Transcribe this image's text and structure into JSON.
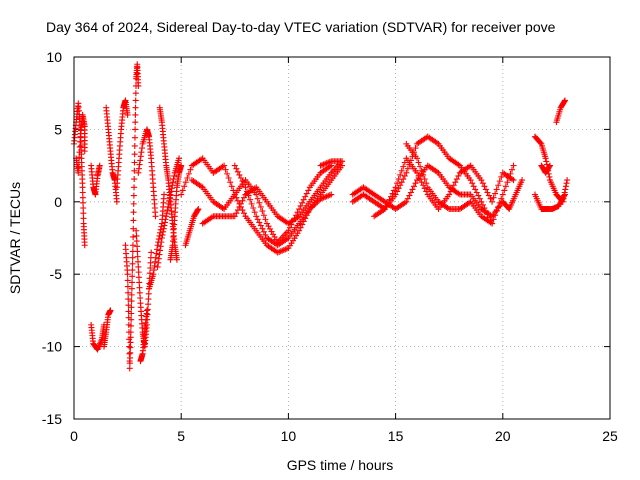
{
  "chart_data": {
    "type": "scatter",
    "title": "Day 364 of 2024, Sidereal Day-to-day VTEC variation (SDTVAR) for receiver pove",
    "xlabel": "GPS time / hours",
    "ylabel": "SDTVAR / TECUs",
    "xlim": [
      0,
      25
    ],
    "ylim": [
      -15,
      10
    ],
    "xticks": [
      0,
      5,
      10,
      15,
      20,
      25
    ],
    "yticks": [
      -15,
      -10,
      -5,
      0,
      5,
      10
    ],
    "grid": true,
    "marker": "+",
    "color": "#ff0000",
    "series": [
      {
        "name": "SDTVAR",
        "tracks": [
          [
            [
              0.0,
              4.0
            ],
            [
              0.1,
              5.5
            ],
            [
              0.2,
              6.8
            ],
            [
              0.3,
              5.0
            ],
            [
              0.35,
              3.0
            ],
            [
              0.4,
              1.0
            ],
            [
              0.45,
              -1.5
            ],
            [
              0.5,
              -3.0
            ]
          ],
          [
            [
              0.1,
              3.0
            ],
            [
              0.2,
              2.0
            ],
            [
              0.3,
              4.5
            ],
            [
              0.4,
              6.0
            ],
            [
              0.5,
              5.2
            ],
            [
              0.5,
              3.5
            ]
          ],
          [
            [
              0.8,
              2.5
            ],
            [
              0.9,
              1.0
            ],
            [
              1.0,
              0.5
            ],
            [
              1.1,
              1.8
            ],
            [
              1.2,
              2.5
            ]
          ],
          [
            [
              0.8,
              -8.5
            ],
            [
              0.9,
              -9.8
            ],
            [
              1.1,
              -10.2
            ],
            [
              1.3,
              -9.5
            ],
            [
              1.4,
              -8.5
            ]
          ],
          [
            [
              1.4,
              -10.0
            ],
            [
              1.5,
              -9.0
            ],
            [
              1.6,
              -7.8
            ],
            [
              1.7,
              -7.5
            ]
          ],
          [
            [
              1.5,
              6.5
            ],
            [
              1.6,
              5.0
            ],
            [
              1.7,
              3.5
            ],
            [
              1.8,
              2.0
            ],
            [
              1.9,
              1.5
            ],
            [
              2.0,
              0.0
            ]
          ],
          [
            [
              2.0,
              1.0
            ],
            [
              2.1,
              3.0
            ],
            [
              2.2,
              5.0
            ],
            [
              2.3,
              6.5
            ],
            [
              2.4,
              7.0
            ],
            [
              2.5,
              6.0
            ]
          ],
          [
            [
              2.4,
              -3.0
            ],
            [
              2.5,
              -5.0
            ],
            [
              2.55,
              -8.0
            ],
            [
              2.6,
              -11.5
            ],
            [
              2.65,
              -9.0
            ],
            [
              2.7,
              -6.0
            ],
            [
              2.75,
              -3.0
            ],
            [
              2.8,
              1.0
            ],
            [
              2.85,
              5.0
            ],
            [
              2.9,
              8.5
            ],
            [
              2.95,
              9.5
            ],
            [
              3.0,
              8.0
            ]
          ],
          [
            [
              2.9,
              -2.0
            ],
            [
              3.0,
              -4.5
            ],
            [
              3.1,
              -7.0
            ],
            [
              3.2,
              -9.0
            ],
            [
              3.3,
              -10.0
            ],
            [
              3.4,
              -8.5
            ],
            [
              3.5,
              -6.0
            ],
            [
              3.6,
              -3.5
            ]
          ],
          [
            [
              3.1,
              -11.0
            ],
            [
              3.2,
              -10.5
            ],
            [
              3.3,
              -9.0
            ],
            [
              3.4,
              -7.5
            ]
          ],
          [
            [
              3.0,
              2.0
            ],
            [
              3.2,
              4.0
            ],
            [
              3.4,
              5.0
            ],
            [
              3.5,
              4.5
            ],
            [
              3.6,
              3.0
            ],
            [
              3.7,
              1.0
            ],
            [
              3.8,
              -1.0
            ]
          ],
          [
            [
              3.5,
              -6.0
            ],
            [
              3.7,
              -5.0
            ],
            [
              3.9,
              -3.0
            ],
            [
              4.1,
              -1.5
            ],
            [
              4.2,
              0.5
            ]
          ],
          [
            [
              3.9,
              -4.5
            ],
            [
              4.1,
              -2.5
            ],
            [
              4.3,
              -1.0
            ],
            [
              4.5,
              0.5
            ],
            [
              4.7,
              2.0
            ],
            [
              4.9,
              3.0
            ]
          ],
          [
            [
              4.0,
              6.5
            ],
            [
              4.1,
              5.5
            ],
            [
              4.2,
              4.0
            ],
            [
              4.3,
              2.5
            ],
            [
              4.4,
              1.5
            ],
            [
              4.5,
              0.0
            ],
            [
              4.6,
              -1.5
            ],
            [
              4.7,
              -3.0
            ],
            [
              4.8,
              -4.0
            ]
          ],
          [
            [
              4.5,
              -4.0
            ],
            [
              4.6,
              -3.0
            ],
            [
              4.7,
              -1.0
            ],
            [
              4.8,
              1.0
            ],
            [
              4.9,
              2.0
            ],
            [
              5.0,
              2.5
            ]
          ],
          [
            [
              5.2,
              -3.0
            ],
            [
              5.4,
              -2.0
            ],
            [
              5.6,
              -1.0
            ],
            [
              5.8,
              -0.5
            ]
          ],
          [
            [
              5.0,
              0.5
            ],
            [
              5.5,
              2.5
            ],
            [
              6.0,
              3.0
            ],
            [
              6.5,
              2.0
            ],
            [
              7.0,
              2.5
            ],
            [
              7.5,
              0.5
            ],
            [
              8.0,
              -1.0
            ],
            [
              8.5,
              -2.0
            ],
            [
              9.0,
              -3.0
            ],
            [
              9.5,
              -3.5
            ],
            [
              10.0,
              -3.2
            ],
            [
              10.5,
              -2.0
            ],
            [
              11.0,
              -0.5
            ],
            [
              11.5,
              0.5
            ],
            [
              12.0,
              1.5
            ],
            [
              12.5,
              2.5
            ]
          ],
          [
            [
              5.5,
              1.5
            ],
            [
              6.0,
              1.0
            ],
            [
              6.5,
              0.0
            ],
            [
              7.0,
              -0.5
            ],
            [
              7.5,
              0.5
            ],
            [
              8.0,
              1.5
            ],
            [
              8.5,
              0.5
            ],
            [
              9.0,
              -1.5
            ],
            [
              9.5,
              -2.8
            ],
            [
              10.0,
              -2.0
            ],
            [
              10.5,
              -0.5
            ],
            [
              11.0,
              1.0
            ],
            [
              11.5,
              2.0
            ],
            [
              12.0,
              2.5
            ]
          ],
          [
            [
              6.0,
              -1.5
            ],
            [
              6.5,
              -1.0
            ],
            [
              7.0,
              -1.0
            ],
            [
              7.5,
              -1.0
            ],
            [
              8.0,
              0.5
            ],
            [
              8.5,
              1.0
            ],
            [
              9.0,
              0.0
            ],
            [
              9.5,
              -1.0
            ],
            [
              10.0,
              -1.5
            ],
            [
              10.5,
              -1.0
            ],
            [
              11.0,
              0.0
            ],
            [
              11.5,
              1.0
            ],
            [
              12.0,
              2.0
            ],
            [
              12.5,
              2.8
            ]
          ],
          [
            [
              7.5,
              2.5
            ],
            [
              8.0,
              1.0
            ],
            [
              8.5,
              -1.0
            ],
            [
              9.0,
              -2.5
            ],
            [
              9.5,
              -3.0
            ],
            [
              10.0,
              -2.5
            ],
            [
              10.5,
              -1.5
            ],
            [
              11.0,
              -0.5
            ],
            [
              11.5,
              0.2
            ],
            [
              12.0,
              0.5
            ]
          ],
          [
            [
              11.5,
              2.5
            ],
            [
              12.0,
              2.8
            ],
            [
              12.5,
              2.8
            ]
          ],
          [
            [
              13.0,
              0.0
            ],
            [
              13.5,
              0.5
            ],
            [
              14.0,
              0.0
            ],
            [
              14.5,
              -0.5
            ],
            [
              15.0,
              0.5
            ],
            [
              15.5,
              2.0
            ],
            [
              16.0,
              4.0
            ],
            [
              16.5,
              4.5
            ],
            [
              17.0,
              4.0
            ],
            [
              17.5,
              3.0
            ],
            [
              18.0,
              2.5
            ],
            [
              18.5,
              1.5
            ],
            [
              19.0,
              0.0
            ],
            [
              19.5,
              -1.5
            ],
            [
              20.0,
              0.5
            ],
            [
              20.5,
              2.5
            ]
          ],
          [
            [
              13.0,
              0.5
            ],
            [
              13.5,
              1.0
            ],
            [
              14.0,
              0.5
            ],
            [
              14.5,
              0.0
            ],
            [
              15.0,
              -0.5
            ],
            [
              15.5,
              0.0
            ],
            [
              16.0,
              1.5
            ],
            [
              16.5,
              2.5
            ],
            [
              17.0,
              2.0
            ],
            [
              17.5,
              1.0
            ],
            [
              18.0,
              0.5
            ],
            [
              18.5,
              0.5
            ],
            [
              19.0,
              -0.5
            ],
            [
              19.5,
              -1.0
            ],
            [
              20.0,
              0.0
            ]
          ],
          [
            [
              14.0,
              -1.0
            ],
            [
              14.5,
              -0.5
            ],
            [
              15.0,
              1.0
            ],
            [
              15.5,
              3.0
            ],
            [
              16.0,
              2.0
            ],
            [
              16.5,
              0.5
            ],
            [
              17.0,
              -0.5
            ],
            [
              17.5,
              0.5
            ],
            [
              18.0,
              2.0
            ],
            [
              18.5,
              2.5
            ],
            [
              19.0,
              1.5
            ],
            [
              19.5,
              0.0
            ],
            [
              20.0,
              2.0
            ],
            [
              20.5,
              1.5
            ]
          ],
          [
            [
              15.5,
              4.0
            ],
            [
              16.0,
              3.0
            ],
            [
              16.5,
              1.0
            ],
            [
              17.0,
              0.0
            ],
            [
              17.5,
              -0.5
            ],
            [
              18.0,
              -0.5
            ],
            [
              18.5,
              0.0
            ],
            [
              19.0,
              -1.0
            ],
            [
              19.5,
              -1.5
            ]
          ],
          [
            [
              20.0,
              0.0
            ],
            [
              20.3,
              -0.5
            ],
            [
              20.6,
              0.5
            ],
            [
              20.9,
              1.5
            ]
          ],
          [
            [
              21.5,
              4.5
            ],
            [
              21.8,
              4.0
            ],
            [
              22.0,
              3.0
            ],
            [
              22.2,
              1.5
            ],
            [
              22.5,
              0.5
            ],
            [
              22.8,
              0.0
            ],
            [
              23.0,
              1.5
            ]
          ],
          [
            [
              21.5,
              0.5
            ],
            [
              21.8,
              -0.5
            ],
            [
              22.0,
              -0.5
            ],
            [
              22.3,
              -0.5
            ],
            [
              22.6,
              -0.3
            ],
            [
              22.9,
              0.5
            ]
          ],
          [
            [
              21.8,
              2.5
            ],
            [
              22.0,
              2.0
            ],
            [
              22.2,
              2.5
            ]
          ],
          [
            [
              22.5,
              5.5
            ],
            [
              22.7,
              6.5
            ],
            [
              22.9,
              7.0
            ]
          ]
        ]
      }
    ]
  }
}
